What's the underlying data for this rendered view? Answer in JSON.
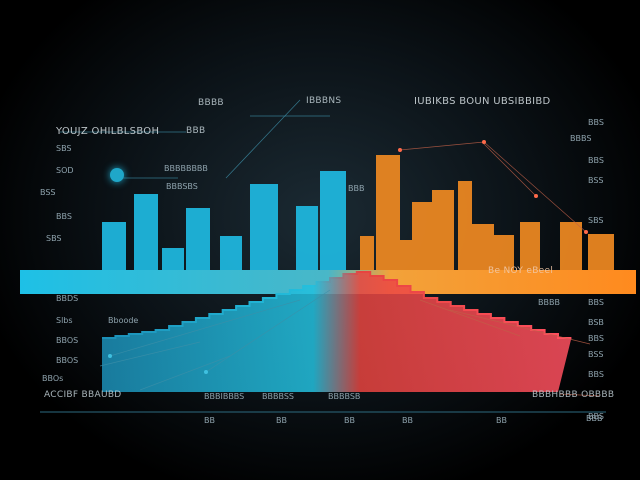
{
  "chart_data": {
    "type": "bar",
    "bars": {
      "left_values": [
        48,
        76,
        22,
        62,
        34,
        86,
        64,
        99
      ],
      "right_values": [
        34,
        115,
        30,
        68,
        80,
        89,
        46,
        35,
        48,
        48,
        36
      ],
      "left_color": "#1fb5dc",
      "right_color": "#f08a22",
      "band_color_left": "#1ec0e6",
      "band_color_right": "#ff8a1e"
    },
    "line": {
      "color": "#e8443f",
      "x": [
        0,
        1,
        2,
        3,
        4,
        5,
        6,
        7,
        8,
        9,
        10,
        11,
        12,
        13,
        14,
        15,
        16,
        17,
        18,
        19,
        20,
        21,
        22,
        23,
        24,
        25,
        26,
        27,
        28,
        29,
        30,
        31,
        32,
        33,
        34
      ],
      "y": [
        18,
        20,
        22,
        24,
        26,
        30,
        34,
        38,
        42,
        46,
        50,
        54,
        58,
        62,
        66,
        70,
        74,
        78,
        82,
        84,
        80,
        76,
        70,
        64,
        58,
        54,
        50,
        46,
        42,
        38,
        34,
        30,
        26,
        22,
        18
      ]
    },
    "labels": {
      "title_left": "YOUJZ OHILBLSBOH",
      "title_mid": "BBB",
      "header_center": "BBBB",
      "header_center2": "IBBBNS",
      "header_right": "IUBIKBS BOUN UBSIBBIBD",
      "band_right": "Be NOY eBeel",
      "bottom_left": "ACCIBF BBAUBD",
      "bottom_right": "BBBHBBB OBBBB",
      "left_axis": [
        "SBS",
        "SOD",
        "BSS",
        "BBS",
        "SBS",
        "BBDS",
        "Slbs",
        "Bboode",
        "BBOS",
        "BBOS",
        "BBOs"
      ],
      "right_axis": [
        "BBS",
        "BBBS",
        "BBS",
        "BSS",
        "SBS",
        "BBS",
        "BSB",
        "BBS",
        "BSS",
        "BBS",
        "BBS"
      ],
      "bottom_ticks": [
        "BB",
        "BB",
        "BB",
        "BB",
        "BB",
        "BBB"
      ],
      "mid_labels": [
        "BBBBBBBB",
        "BBBSBS",
        "BBBIBBBS",
        "BBBBSS",
        "BBBBSB",
        "BBB",
        "BBBB"
      ]
    }
  }
}
